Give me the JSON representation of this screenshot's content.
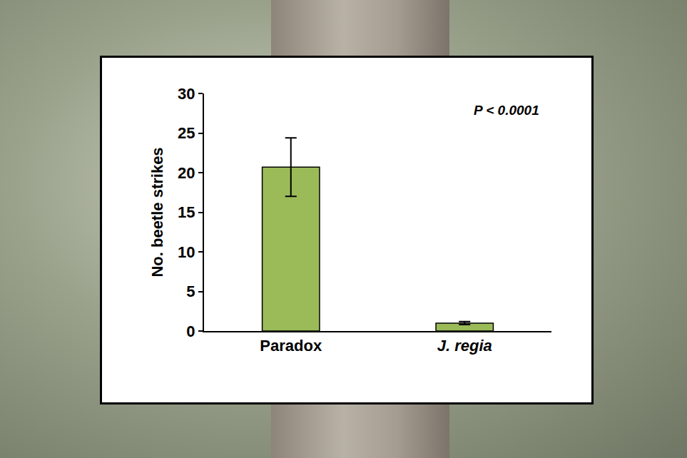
{
  "chart_data": {
    "type": "bar",
    "categories": [
      "Paradox",
      "J. regia"
    ],
    "values": [
      20.7,
      1.0
    ],
    "errors": [
      3.7,
      0.2
    ],
    "color": "#9bbb59",
    "y_label": "No. beetle strikes",
    "annotations": [
      "P < 0.0001"
    ],
    "ylim": [
      0,
      30
    ],
    "yticks": [
      0,
      5,
      10,
      15,
      20,
      25,
      30
    ],
    "grid": false
  }
}
